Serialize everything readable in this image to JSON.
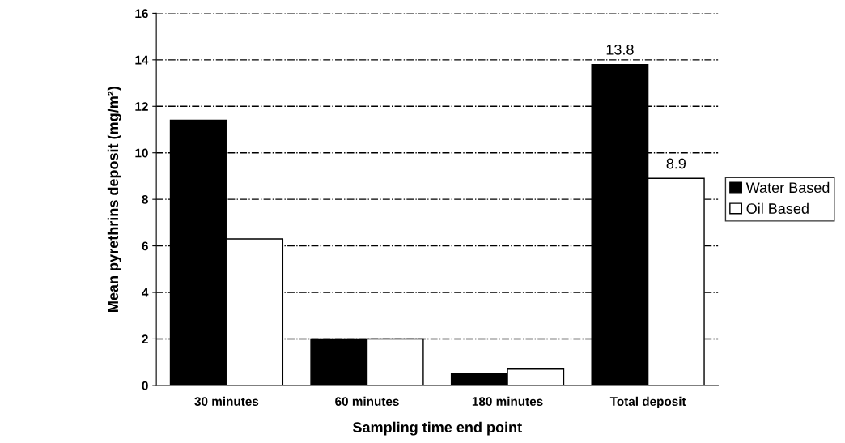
{
  "chart_data": {
    "type": "bar",
    "xlabel": "Sampling time end point",
    "ylabel": "Mean pyrethrins deposit (mg/m²)",
    "categories": [
      "30 minutes",
      "60 minutes",
      "180 minutes",
      "Total deposit"
    ],
    "series": [
      {
        "name": "Water Based",
        "color": "#000000",
        "values": [
          11.4,
          2.0,
          0.5,
          13.8
        ],
        "value_labels": [
          null,
          null,
          null,
          "13.8"
        ]
      },
      {
        "name": "Oil Based",
        "color": "#ffffff",
        "values": [
          6.3,
          2.0,
          0.7,
          8.9
        ],
        "value_labels": [
          null,
          null,
          null,
          "8.9"
        ]
      }
    ],
    "ylim": [
      0,
      16
    ],
    "yticks": [
      0,
      2,
      4,
      6,
      8,
      10,
      12,
      14,
      16
    ],
    "grid": "y",
    "legend": "right"
  }
}
